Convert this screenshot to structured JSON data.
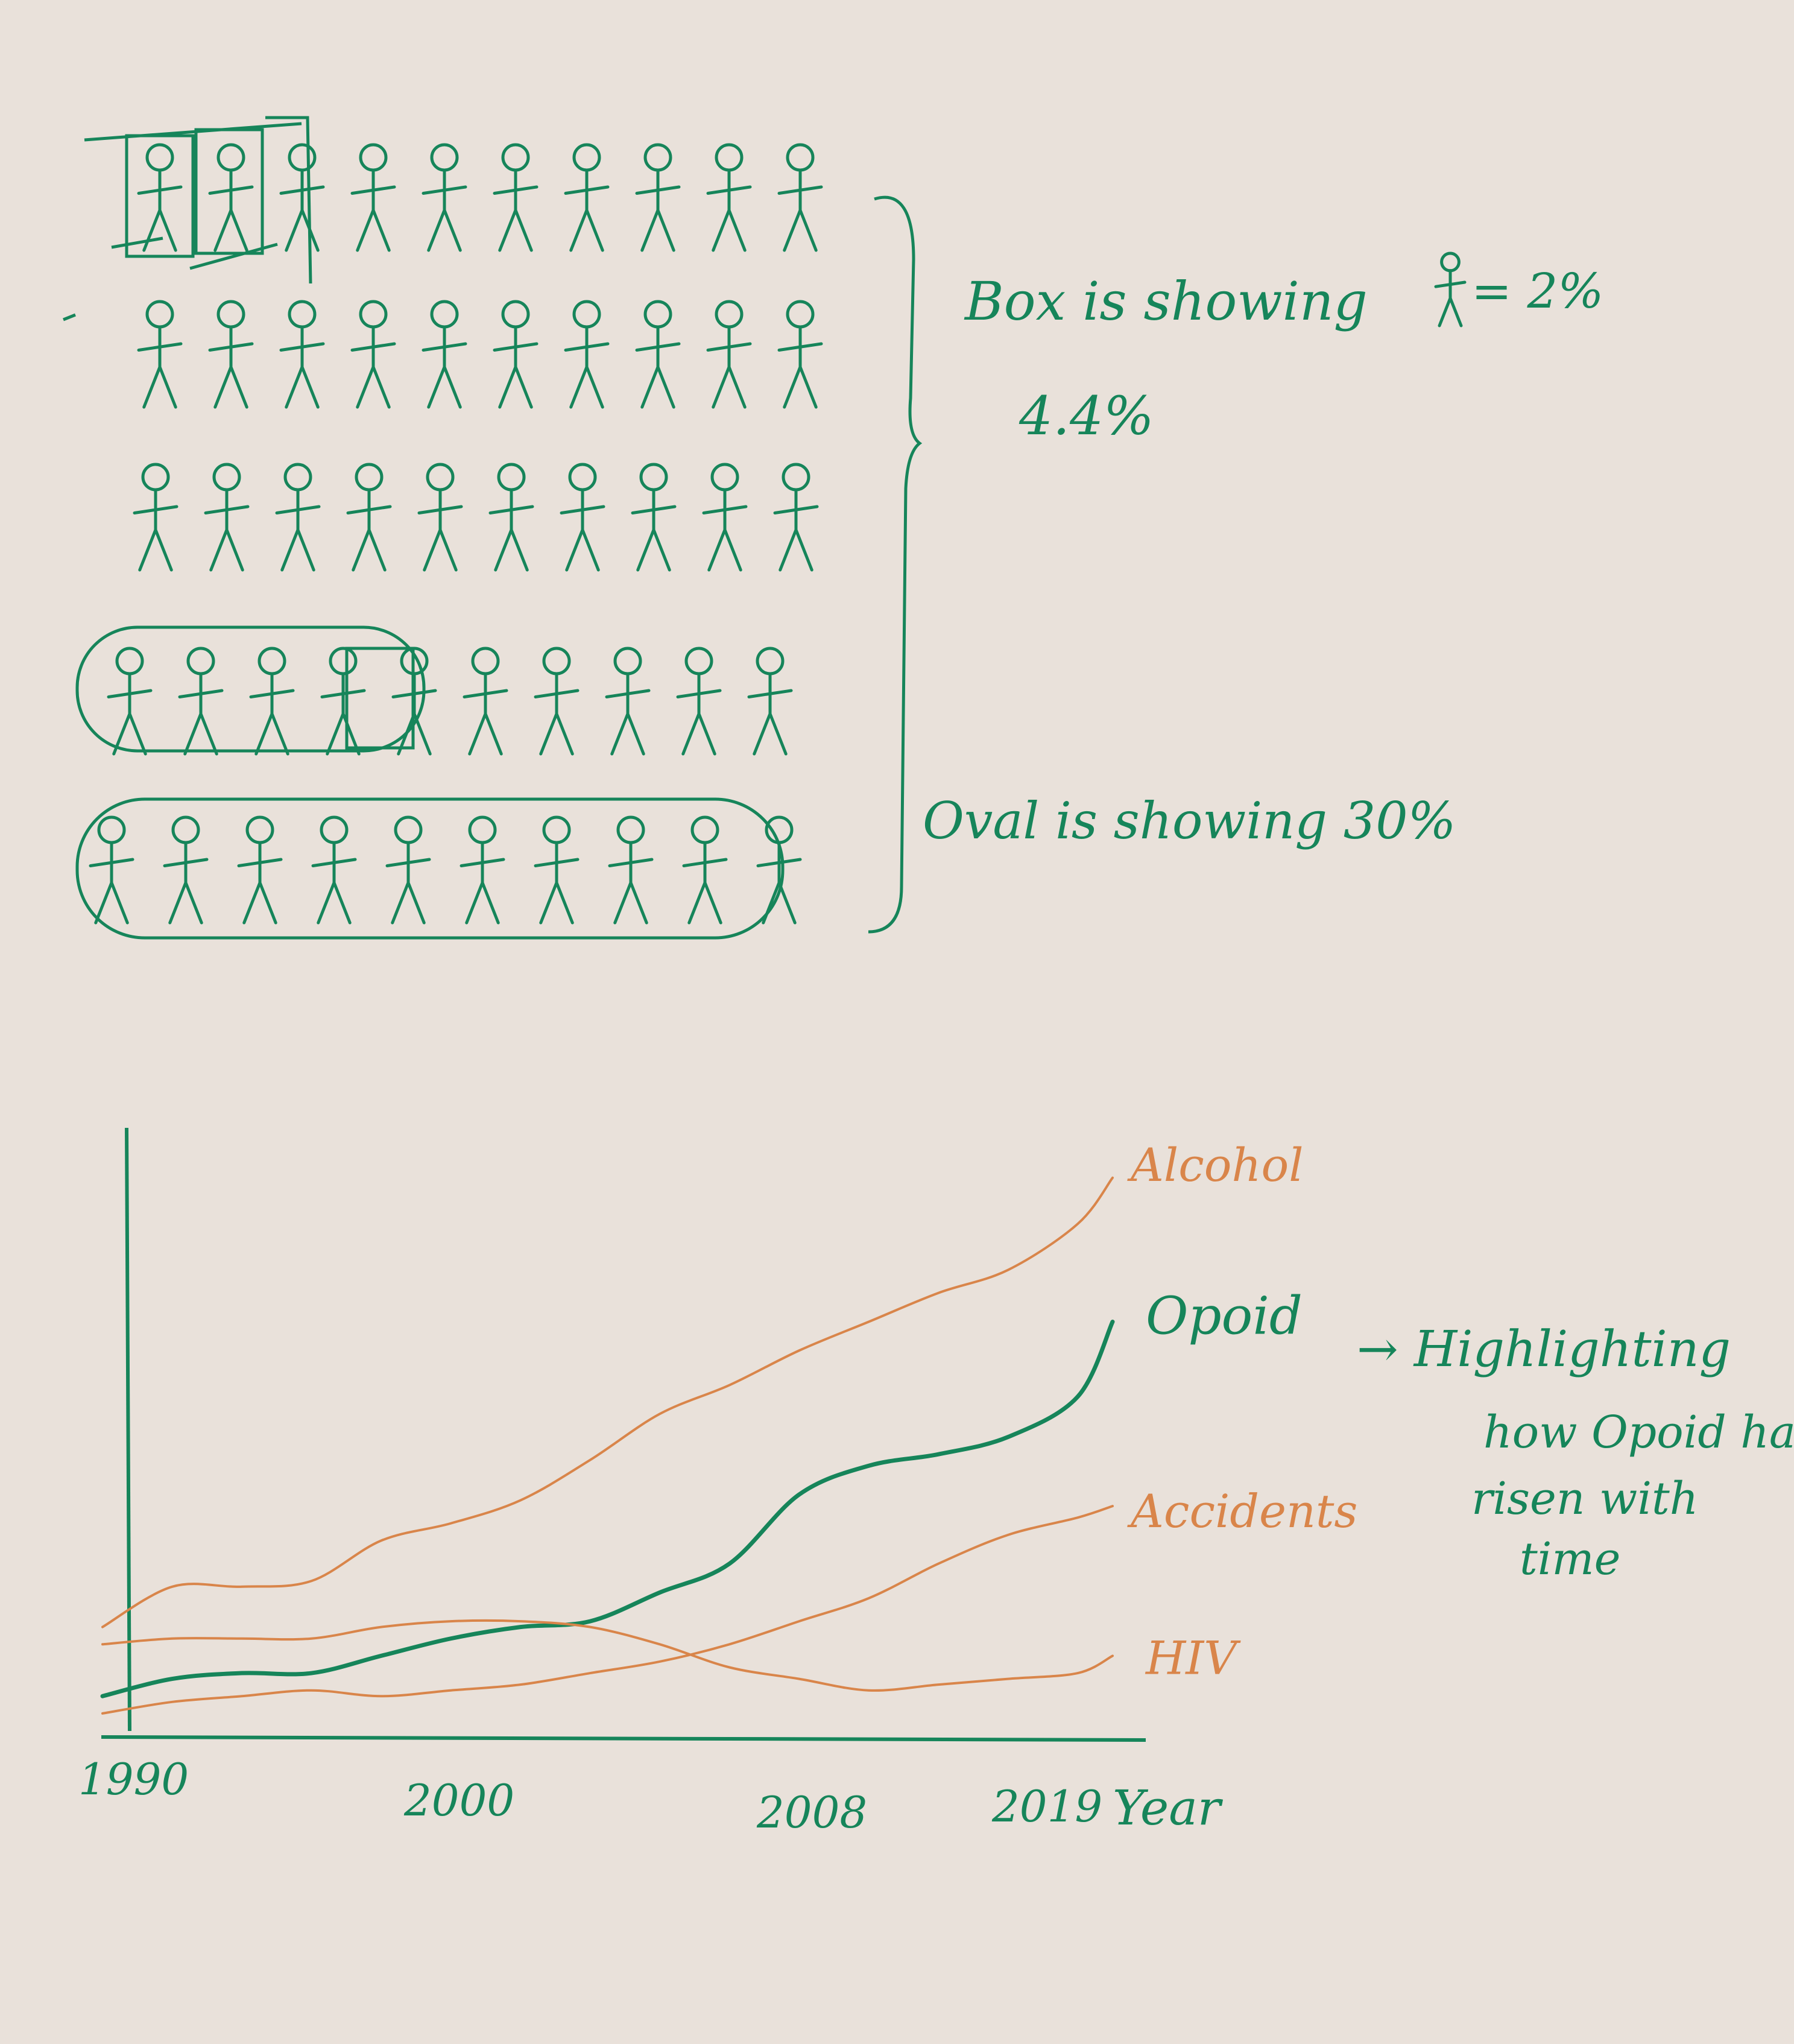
{
  "colors": {
    "green": "#16855a",
    "orange": "#d9854a",
    "paper": "#e9e1da"
  },
  "pictogram": {
    "icon": "stick-figure-icon",
    "rows": 5,
    "per_row": 10,
    "legend": {
      "box_note_line1": "Box is showing",
      "box_value": "4.4%",
      "unit_equals": "= 2%",
      "oval_note": "Oval is showing 30%"
    }
  },
  "chart_data": {
    "type": "line",
    "x_ticks": [
      "1990",
      "2000",
      "2008",
      "2019"
    ],
    "x_axis_label": "Year",
    "xlim": [
      1990,
      2019
    ],
    "ylim": [
      0,
      100
    ],
    "x": [
      1990,
      1992,
      1994,
      1996,
      1998,
      2000,
      2002,
      2004,
      2006,
      2008,
      2010,
      2012,
      2014,
      2016,
      2018,
      2019
    ],
    "series": [
      {
        "name": "Alcohol",
        "color": "#d9854a",
        "values": [
          17,
          24,
          24,
          25,
          32,
          35,
          39,
          46,
          54,
          59,
          65,
          70,
          75,
          79,
          87,
          95
        ]
      },
      {
        "name": "Opoid",
        "color": "#16855a",
        "values": [
          5,
          8,
          9,
          9,
          12,
          15,
          17,
          18,
          23,
          28,
          40,
          45,
          47,
          50,
          57,
          70
        ]
      },
      {
        "name": "Accidents",
        "color": "#d9854a",
        "values": [
          2,
          4,
          5,
          6,
          5,
          6,
          7,
          9,
          11,
          14,
          18,
          22,
          28,
          33,
          36,
          38
        ]
      },
      {
        "name": "HIV",
        "color": "#d9854a",
        "values": [
          14,
          15,
          15,
          15,
          17,
          18,
          18,
          17,
          14,
          10,
          8,
          6,
          7,
          8,
          9,
          12
        ]
      }
    ],
    "annotation": [
      "→ Highlighting",
      "how Opoid ha",
      "risen with",
      "time"
    ]
  }
}
